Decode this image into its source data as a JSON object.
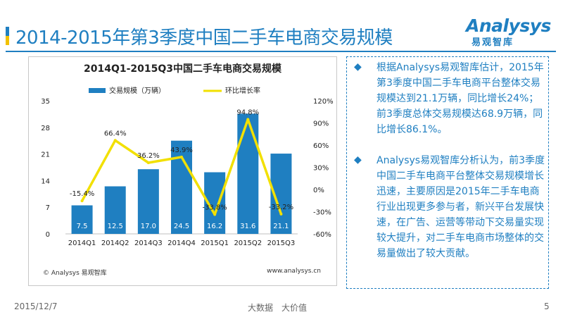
{
  "slide": {
    "title": "2014-2015年第3季度中国二手车电商交易规模",
    "accent_colors": [
      "#1f7fc1",
      "#f2c100"
    ],
    "logo_word": "Analysys",
    "logo_sub": "易观智库"
  },
  "chart_data": {
    "type": "bar+line",
    "title": "2014Q1-2015Q3中国二手车电商交易规模",
    "categories": [
      "2014Q1",
      "2014Q2",
      "2014Q3",
      "2014Q4",
      "2015Q1",
      "2015Q2",
      "2015Q3"
    ],
    "series": [
      {
        "name": "交易规模（万辆）",
        "type": "bar",
        "axis": "left",
        "color": "#1f7fc1",
        "values": [
          7.5,
          12.5,
          17.0,
          24.5,
          16.2,
          31.6,
          21.1
        ],
        "labels": [
          "7.5",
          "12.5",
          "17.0",
          "24.5",
          "16.2",
          "31.6",
          "21.1"
        ]
      },
      {
        "name": "环比增长率",
        "type": "line",
        "axis": "right",
        "color": "#f2e000",
        "values": [
          -15.4,
          66.4,
          36.2,
          43.9,
          -33.8,
          94.8,
          -33.2
        ],
        "labels": [
          "-15.4%",
          "66.4%",
          "36.2%",
          "43.9%",
          "-33.8%",
          "94.8%",
          "-33.2%"
        ]
      }
    ],
    "left_axis": {
      "min": 0,
      "max": 35,
      "ticks": [
        "0",
        "7",
        "14",
        "21",
        "28",
        "35"
      ]
    },
    "right_axis": {
      "min": -60,
      "max": 120,
      "ticks": [
        "-60%",
        "-30%",
        "0%",
        "30%",
        "60%",
        "90%",
        "120%"
      ]
    },
    "legend": "top",
    "source_left": "© Analysys 易观智库",
    "source_right": "www.analysys.cn"
  },
  "insights": {
    "p1": "根据Analysys易观智库估计，2015年第3季度中国二手车电商平台整体交易规模达到21.1万辆，同比增长24%；前3季度总体交易规模达68.9万辆，同比增长86.1%。",
    "p2": "Analysys易观智库分析认为，前3季度中国二手车电商平台整体交易规模增长迅速，主要原因是2015年二手车电商行业出现更多参与者，新兴平台发展快速，在广告、运营等带动下交易量实现较大提升，对二手车电商市场整体的交易量做出了较大贡献。",
    "bullet_symbol": "◆"
  },
  "footer": {
    "date": "2015/12/7",
    "tagline": "大数据　大价值",
    "page_number": "5"
  }
}
